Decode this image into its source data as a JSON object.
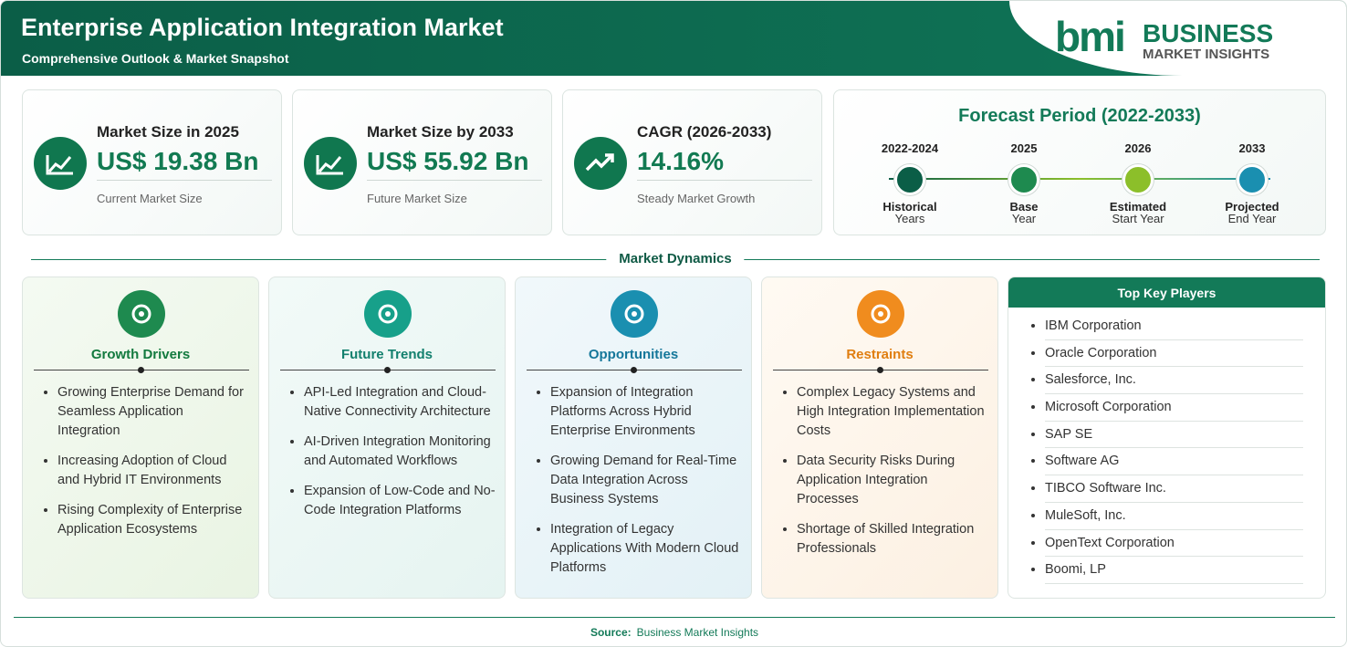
{
  "header": {
    "title": "Enterprise Application Integration Market",
    "subtitle": "Comprehensive Outlook & Market Snapshot",
    "logo": {
      "mark": "bmi",
      "line1": "BUSINESS",
      "line2": "MARKET INSIGHTS"
    }
  },
  "stats": [
    {
      "label": "Market Size in 2025",
      "value": "US$ 19.38 Bn",
      "note": "Current Market Size"
    },
    {
      "label": "Market Size by 2033",
      "value": "US$ 55.92 Bn",
      "note": "Future Market Size"
    },
    {
      "label": "CAGR (2026-2033)",
      "value": "14.16%",
      "note": "Steady Market Growth"
    }
  ],
  "forecast": {
    "title": "Forecast Period (2022-2033)",
    "steps": [
      {
        "period": "2022-2024",
        "label": "Historical",
        "sub": "Years"
      },
      {
        "period": "2025",
        "label": "Base",
        "sub": "Year"
      },
      {
        "period": "2026",
        "label": "Estimated",
        "sub": "Start Year"
      },
      {
        "period": "2033",
        "label": "Projected",
        "sub": "End Year"
      }
    ]
  },
  "dynamics": {
    "title": "Market Dynamics",
    "sections": [
      {
        "title": "Growth Drivers",
        "items": [
          "Growing Enterprise Demand for Seamless Application Integration",
          "Increasing Adoption of Cloud and Hybrid IT Environments",
          "Rising Complexity of Enterprise Application Ecosystems"
        ]
      },
      {
        "title": "Future Trends",
        "items": [
          "API-Led Integration and Cloud-Native Connectivity Architecture",
          "AI-Driven Integration Monitoring and Automated Workflows",
          "Expansion of Low-Code and No-Code Integration Platforms"
        ]
      },
      {
        "title": "Opportunities",
        "items": [
          "Expansion of Integration Platforms Across Hybrid Enterprise Environments",
          "Growing Demand for Real-Time Data Integration Across Business Systems",
          "Integration of Legacy Applications With Modern Cloud Platforms"
        ]
      },
      {
        "title": "Restraints",
        "items": [
          "Complex Legacy Systems and High Integration Implementation Costs",
          "Data Security Risks During Application Integration Processes",
          "Shortage of Skilled Integration Professionals"
        ]
      }
    ]
  },
  "players": {
    "title": "Top Key Players",
    "items": [
      "IBM Corporation",
      "Oracle Corporation",
      "Salesforce, Inc.",
      "Microsoft Corporation",
      "SAP SE",
      "Software AG",
      "TIBCO Software Inc.",
      "MuleSoft, Inc.",
      "OpenText Corporation",
      "Boomi, LP"
    ]
  },
  "footer": {
    "source_label": "Source:",
    "source": "Business Market Insights"
  }
}
